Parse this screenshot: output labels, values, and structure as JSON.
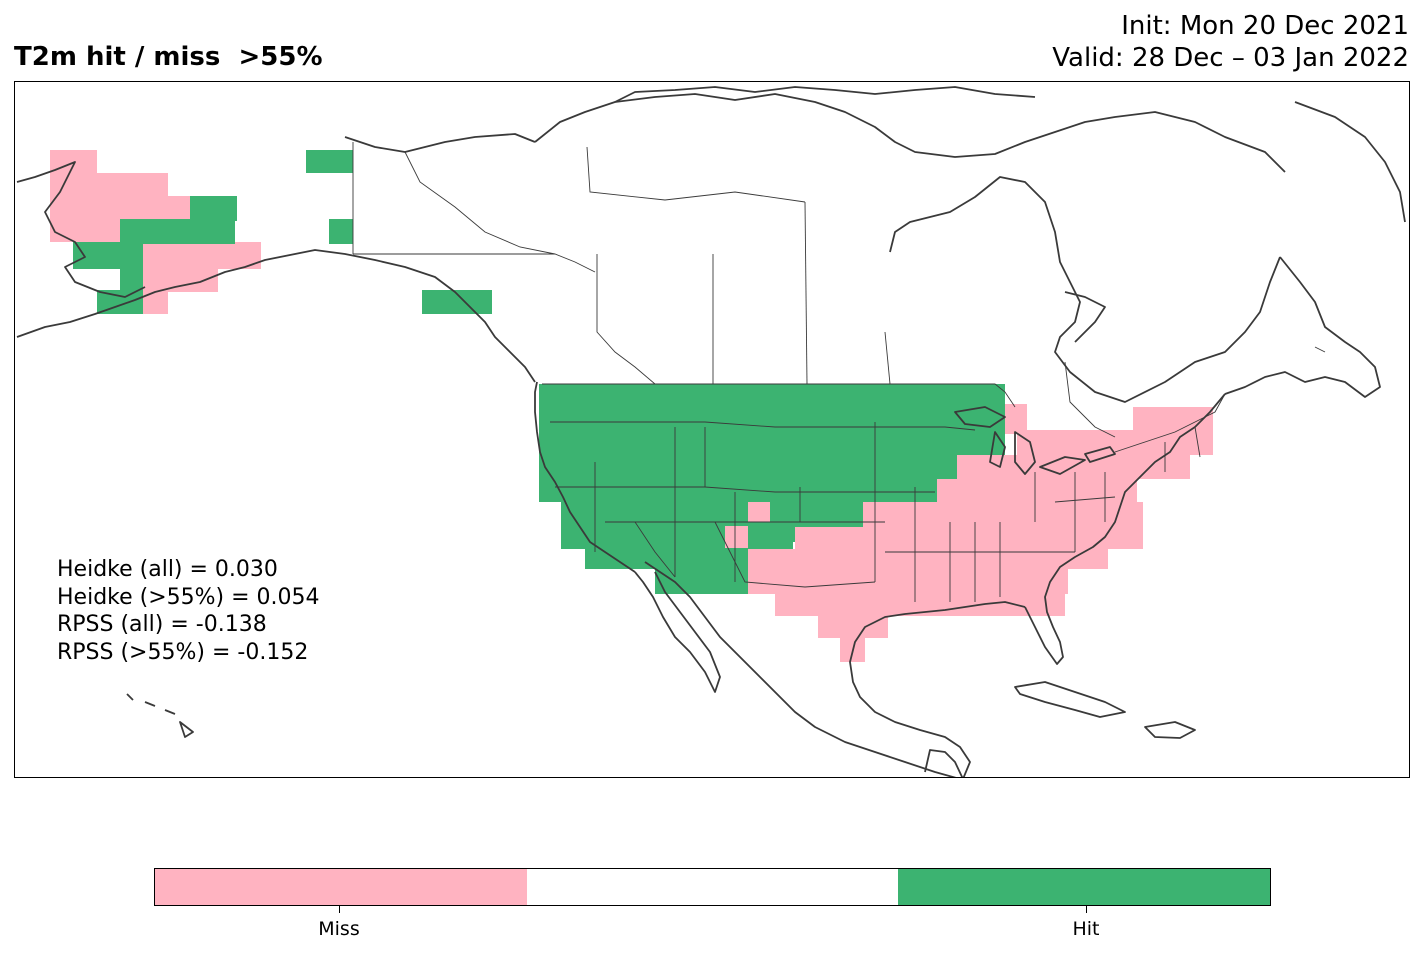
{
  "title": {
    "left": "T2m hit / miss  >55%",
    "init": "Init: Mon 20 Dec 2021",
    "valid": "Valid: 28 Dec – 03 Jan 2022"
  },
  "stats": [
    "Heidke (all) = 0.030",
    "Heidke (>55%) = 0.054",
    "RPSS (all) = -0.138",
    "RPSS (>55%) = -0.152"
  ],
  "legend": {
    "miss_label": "Miss",
    "hit_label": "Hit",
    "colors": {
      "miss": "#ffb3c1",
      "neutral": "#ffffff",
      "hit": "#3cb371"
    }
  },
  "map": {
    "projection": "lat-lon, North America",
    "coastline_color": "#3a3a3a",
    "categories": [
      "miss",
      "neutral",
      "hit"
    ],
    "hit_regions": [
      "Alaska interior",
      "Pacific Northwest",
      "Northern Rockies",
      "Great Plains",
      "Upper Midwest",
      "Southwest",
      "Southern Alaska coast"
    ],
    "miss_regions": [
      "Western Alaska",
      "Southwest Alaska",
      "Texas",
      "Gulf Coast",
      "Southeast",
      "Ohio Valley",
      "Great Lakes",
      "Northeast",
      "Mid-Atlantic"
    ]
  }
}
